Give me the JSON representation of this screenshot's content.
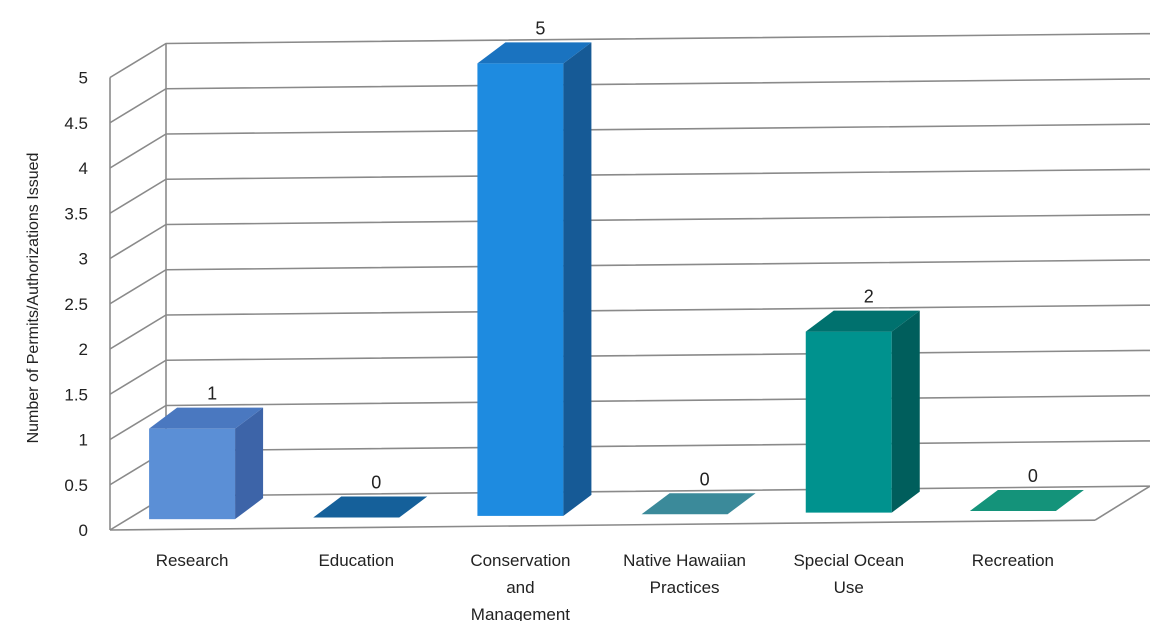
{
  "chart_data": {
    "type": "bar",
    "style": "3d-column",
    "title": "",
    "xlabel": "",
    "ylabel": "Number of Permits/Authorizations Issued",
    "ylim": [
      0,
      5
    ],
    "ytick_step": 0.5,
    "yticks": [
      "0",
      "0.5",
      "1",
      "1.5",
      "2",
      "2.5",
      "3",
      "3.5",
      "4",
      "4.5",
      "5"
    ],
    "grid": true,
    "legend": "none",
    "categories": [
      [
        "Research"
      ],
      [
        "Education"
      ],
      [
        "Conservation",
        "and",
        "Management"
      ],
      [
        "Native Hawaiian",
        "Practices"
      ],
      [
        "Special Ocean",
        "Use"
      ],
      [
        "Recreation"
      ]
    ],
    "values": [
      1,
      0,
      5,
      0,
      2,
      0
    ],
    "data_labels": [
      "1",
      "0",
      "5",
      "0",
      "2",
      "0"
    ],
    "colors": [
      {
        "front": "#5b8fd6",
        "side": "#3d64a8",
        "top": "#4a78c0"
      },
      {
        "front": "#15609a",
        "side": "#0e4a7a",
        "top": "#15609a"
      },
      {
        "front": "#1e8be0",
        "side": "#165a96",
        "top": "#1a73c0"
      },
      {
        "front": "#3b8a9a",
        "side": "#2a6c7a",
        "top": "#3b8a9a"
      },
      {
        "front": "#00928e",
        "side": "#005e5c",
        "top": "#00716e"
      },
      {
        "front": "#14937a",
        "side": "#0c6e5a",
        "top": "#14937a"
      }
    ]
  }
}
